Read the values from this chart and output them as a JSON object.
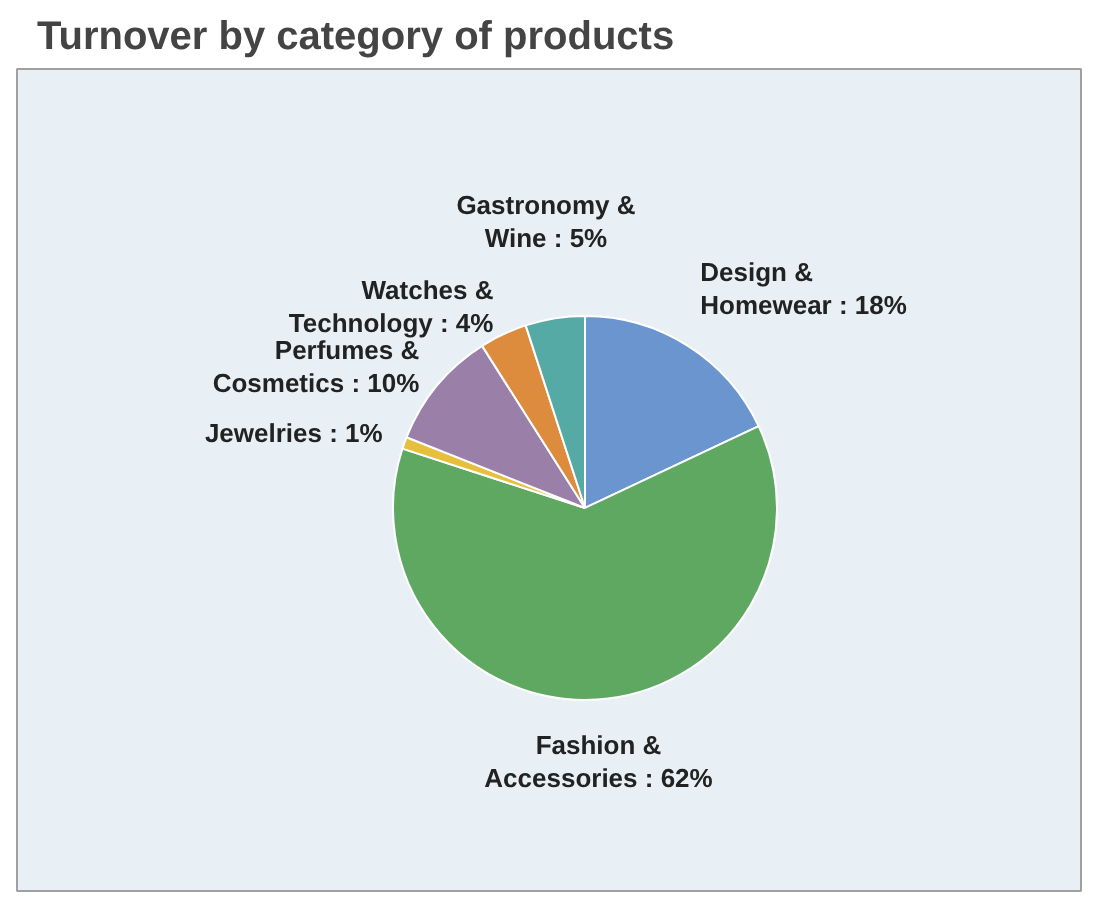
{
  "chart_data": {
    "type": "pie",
    "title": "Turnover by category of products",
    "categories": [
      "Design &\nHomewear",
      "Fashion &\nAccessories",
      "Jewelries",
      "Perfumes &\nCosmetics",
      "Watches &\nTechnology",
      "Gastronomy &\nWine"
    ],
    "values": [
      18,
      62,
      1,
      10,
      4,
      5
    ],
    "value_labels": [
      ": 18%",
      ": 62%",
      ": 1%",
      ": 10%",
      ": 4%",
      ": 5%"
    ],
    "colors": [
      "#6a95cf",
      "#5fa862",
      "#e6c03c",
      "#9a7fa8",
      "#dd8c3e",
      "#56aaa6"
    ]
  }
}
